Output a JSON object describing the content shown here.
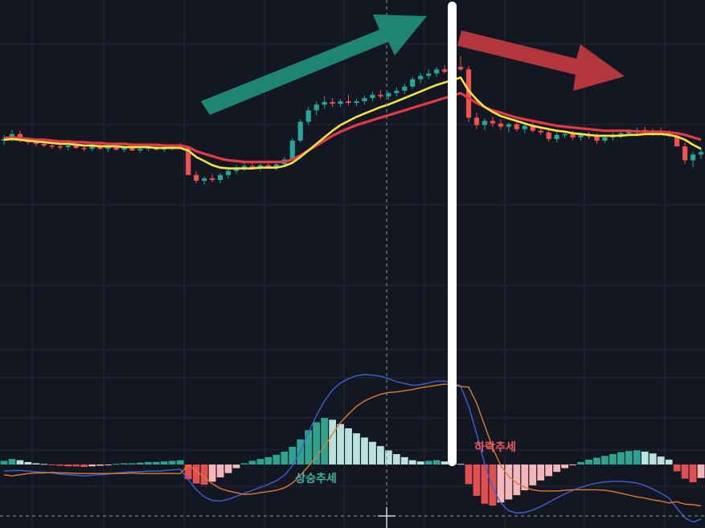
{
  "colors": {
    "background": "#131722",
    "grid": "#232a37",
    "candle_up": "#26a69a",
    "candle_down": "#ef5350",
    "ma_fast": "#f5e542",
    "ma_slow": "#e53945",
    "macd_line": "#3f5fd6",
    "signal_line": "#e07a2c",
    "hist_up_strong": "#2fa390",
    "hist_up_weak": "#b9e2dc",
    "hist_down_strong": "#e05050",
    "hist_down_weak": "#f2b6bb",
    "arrow_up": "#1f8f77",
    "arrow_down": "#c73a40",
    "divider": "#ffffff",
    "label_up": "#3fb39d",
    "label_down": "#f05a5a"
  },
  "annotations": {
    "uptrend_label": "상승추세",
    "downtrend_label": "하락추세"
  },
  "chart_data": [
    {
      "type": "candlestick",
      "title": "",
      "series": [
        {
          "name": "",
          "kind": "candles",
          "values": [
            [
              100.2,
              100.9,
              99.7,
              100.4
            ],
            [
              100.4,
              101.5,
              100.1,
              101.0
            ],
            [
              101.0,
              101.4,
              100.0,
              100.3
            ],
            [
              100.3,
              100.6,
              99.7,
              100.0
            ],
            [
              100.0,
              100.3,
              99.5,
              99.8
            ],
            [
              99.8,
              100.2,
              99.4,
              99.6
            ],
            [
              99.6,
              99.9,
              99.2,
              99.5
            ],
            [
              99.5,
              99.8,
              99.1,
              99.4
            ],
            [
              99.4,
              99.9,
              99.0,
              99.6
            ],
            [
              99.6,
              99.9,
              99.2,
              99.3
            ],
            [
              99.3,
              99.6,
              98.9,
              99.2
            ],
            [
              99.2,
              99.7,
              98.9,
              99.5
            ],
            [
              99.5,
              99.8,
              99.0,
              99.2
            ],
            [
              99.2,
              99.6,
              98.8,
              99.4
            ],
            [
              99.4,
              99.7,
              99.0,
              99.1
            ],
            [
              99.1,
              99.5,
              98.8,
              99.3
            ],
            [
              99.3,
              99.6,
              98.9,
              99.0
            ],
            [
              99.0,
              99.4,
              98.7,
              99.2
            ],
            [
              99.2,
              99.5,
              98.9,
              99.4
            ],
            [
              99.4,
              99.7,
              99.0,
              99.1
            ],
            [
              99.1,
              99.4,
              98.8,
              99.3
            ],
            [
              99.3,
              99.6,
              99.0,
              99.5
            ],
            [
              99.5,
              99.9,
              99.2,
              99.3
            ],
            [
              99.3,
              99.6,
              98.2,
              96.0
            ],
            [
              96.0,
              96.5,
              95.0,
              95.3
            ],
            [
              95.3,
              95.8,
              94.8,
              95.6
            ],
            [
              95.6,
              96.1,
              95.1,
              95.4
            ],
            [
              95.4,
              96.2,
              95.0,
              96.0
            ],
            [
              96.0,
              96.7,
              95.6,
              96.5
            ],
            [
              96.5,
              97.2,
              96.1,
              96.9
            ],
            [
              96.9,
              97.5,
              96.5,
              97.1
            ],
            [
              97.1,
              97.6,
              96.7,
              96.9
            ],
            [
              96.9,
              97.4,
              96.5,
              97.2
            ],
            [
              97.2,
              97.7,
              96.8,
              97.0
            ],
            [
              97.0,
              97.5,
              96.6,
              97.3
            ],
            [
              97.3,
              98.2,
              97.0,
              97.9
            ],
            [
              97.9,
              100.5,
              97.7,
              100.2
            ],
            [
              100.2,
              102.8,
              100.0,
              102.5
            ],
            [
              102.5,
              104.3,
              102.1,
              103.9
            ],
            [
              103.9,
              105.0,
              103.3,
              104.6
            ],
            [
              104.6,
              105.6,
              104.1,
              104.9
            ],
            [
              104.9,
              105.4,
              104.3,
              104.7
            ],
            [
              104.7,
              105.3,
              104.3,
              105.0
            ],
            [
              105.0,
              105.8,
              104.5,
              104.8
            ],
            [
              104.8,
              105.3,
              104.4,
              105.0
            ],
            [
              105.0,
              105.7,
              104.6,
              105.4
            ],
            [
              105.4,
              106.2,
              105.0,
              105.8
            ],
            [
              105.8,
              106.4,
              105.3,
              105.6
            ],
            [
              105.6,
              106.2,
              105.2,
              106.0
            ],
            [
              106.0,
              106.7,
              105.6,
              106.3
            ],
            [
              106.3,
              107.2,
              105.9,
              106.8
            ],
            [
              106.8,
              108.0,
              106.5,
              107.7
            ],
            [
              107.7,
              108.5,
              107.2,
              108.1
            ],
            [
              108.1,
              108.9,
              107.7,
              108.4
            ],
            [
              108.4,
              109.2,
              108.0,
              108.9
            ],
            [
              108.9,
              109.4,
              108.4,
              108.6
            ],
            [
              108.6,
              109.6,
              108.3,
              109.2
            ],
            [
              109.2,
              110.5,
              108.7,
              108.9
            ],
            [
              108.9,
              109.3,
              102.5,
              103.0
            ],
            [
              103.0,
              103.6,
              101.6,
              102.1
            ],
            [
              102.1,
              102.9,
              101.5,
              102.6
            ],
            [
              102.6,
              103.1,
              101.9,
              102.3
            ],
            [
              102.3,
              102.8,
              101.5,
              101.9
            ],
            [
              101.9,
              102.4,
              101.2,
              102.2
            ],
            [
              102.2,
              102.7,
              101.3,
              101.6
            ],
            [
              101.6,
              102.3,
              101.1,
              102.0
            ],
            [
              102.0,
              102.4,
              101.2,
              101.4
            ],
            [
              101.4,
              101.9,
              100.9,
              101.2
            ],
            [
              101.2,
              101.6,
              100.1,
              100.4
            ],
            [
              100.4,
              101.2,
              100.0,
              100.9
            ],
            [
              100.9,
              101.4,
              100.5,
              101.0
            ],
            [
              101.0,
              101.4,
              100.3,
              100.6
            ],
            [
              100.6,
              101.2,
              100.2,
              100.9
            ],
            [
              100.9,
              101.3,
              100.4,
              100.7
            ],
            [
              100.7,
              101.1,
              99.8,
              100.2
            ],
            [
              100.2,
              100.9,
              99.9,
              100.6
            ],
            [
              100.6,
              101.2,
              100.2,
              100.9
            ],
            [
              100.9,
              101.4,
              100.5,
              101.1
            ],
            [
              101.1,
              101.6,
              100.7,
              101.3
            ],
            [
              101.3,
              101.8,
              100.9,
              101.5
            ],
            [
              101.5,
              101.9,
              101.0,
              101.2
            ],
            [
              101.2,
              101.7,
              100.8,
              101.4
            ],
            [
              101.4,
              101.8,
              100.9,
              101.1
            ],
            [
              101.1,
              101.5,
              100.6,
              100.8
            ],
            [
              100.8,
              101.2,
              99.8,
              99.5
            ],
            [
              99.5,
              100.0,
              97.4,
              97.8
            ],
            [
              97.8,
              98.8,
              96.9,
              98.5
            ],
            [
              98.5,
              99.2,
              98.0,
              98.8
            ]
          ]
        },
        {
          "name": "",
          "kind": "line",
          "values": [
            100.3,
            100.4,
            100.3,
            100.2,
            100.1,
            100.0,
            99.9,
            99.8,
            99.8,
            99.7,
            99.6,
            99.6,
            99.5,
            99.5,
            99.5,
            99.4,
            99.4,
            99.4,
            99.4,
            99.3,
            99.3,
            99.3,
            99.3,
            99.0,
            98.2,
            97.7,
            97.2,
            96.9,
            96.8,
            96.8,
            96.8,
            96.8,
            96.9,
            96.9,
            96.9,
            97.1,
            97.5,
            98.2,
            99.0,
            99.8,
            100.6,
            101.4,
            102.1,
            102.6,
            103.1,
            103.5,
            103.9,
            104.3,
            104.6,
            105.0,
            105.4,
            105.8,
            106.2,
            106.6,
            107.0,
            107.3,
            107.6,
            107.9,
            106.3,
            105.2,
            104.3,
            103.7,
            103.2,
            102.9,
            102.6,
            102.3,
            102.0,
            101.8,
            101.6,
            101.4,
            101.3,
            101.1,
            101.0,
            100.9,
            100.8,
            100.8,
            100.8,
            100.8,
            100.9,
            100.9,
            101.0,
            101.0,
            101.0,
            100.9,
            100.7,
            100.3,
            99.7,
            99.2
          ]
        },
        {
          "name": "",
          "kind": "line",
          "values": [
            100.5,
            100.6,
            100.5,
            100.4,
            100.3,
            100.3,
            100.2,
            100.1,
            100.1,
            100.0,
            100.0,
            99.9,
            99.9,
            99.8,
            99.8,
            99.8,
            99.7,
            99.7,
            99.7,
            99.7,
            99.6,
            99.6,
            99.6,
            99.4,
            98.9,
            98.6,
            98.3,
            98.0,
            97.8,
            97.7,
            97.6,
            97.6,
            97.6,
            97.6,
            97.6,
            97.6,
            97.9,
            98.4,
            99.0,
            99.6,
            100.2,
            100.8,
            101.3,
            101.7,
            102.1,
            102.4,
            102.7,
            103.0,
            103.3,
            103.6,
            103.9,
            104.2,
            104.5,
            104.8,
            105.1,
            105.4,
            105.7,
            106.0,
            105.4,
            104.8,
            104.3,
            103.9,
            103.6,
            103.3,
            103.0,
            102.8,
            102.6,
            102.4,
            102.2,
            102.0,
            101.9,
            101.8,
            101.7,
            101.6,
            101.5,
            101.4,
            101.4,
            101.4,
            101.4,
            101.3,
            101.3,
            101.3,
            101.3,
            101.2,
            101.1,
            100.9,
            100.6,
            100.3
          ]
        }
      ]
    },
    {
      "type": "bar",
      "title": "",
      "xlabel": "",
      "ylabel": "",
      "series": [
        {
          "name": "",
          "kind": "histogram",
          "values": [
            0.6,
            0.9,
            0.7,
            0.4,
            0.2,
            0.1,
            -0.1,
            -0.2,
            -0.3,
            -0.3,
            -0.4,
            -0.3,
            -0.2,
            -0.1,
            0.1,
            0.2,
            0.2,
            0.3,
            0.4,
            0.4,
            0.5,
            0.6,
            0.7,
            -2.4,
            -3.1,
            -3.3,
            -2.8,
            -2.1,
            -1.4,
            -0.6,
            0.2,
            0.6,
            0.9,
            1.2,
            1.6,
            2.1,
            2.9,
            4.1,
            5.6,
            6.9,
            7.6,
            7.3,
            6.6,
            5.9,
            5.1,
            4.4,
            3.7,
            3.0,
            2.3,
            1.7,
            1.2,
            0.7,
            0.5,
            0.6,
            0.7,
            0.5,
            0.3,
            0.1,
            -3.2,
            -5.1,
            -6.4,
            -6.7,
            -6.2,
            -5.7,
            -5.0,
            -4.2,
            -3.4,
            -2.6,
            -1.9,
            -1.2,
            -0.6,
            -0.1,
            0.4,
            0.8,
            1.1,
            1.4,
            1.7,
            2.0,
            2.2,
            2.3,
            2.1,
            1.8,
            1.3,
            0.8,
            -1.1,
            -2.3,
            -2.9,
            -2.2
          ]
        },
        {
          "name": "",
          "kind": "line",
          "values": [
            -1.1,
            -1.0,
            -1.0,
            -1.1,
            -1.2,
            -1.3,
            -1.4,
            -1.6,
            -1.7,
            -1.8,
            -1.9,
            -1.8,
            -1.7,
            -1.6,
            -1.4,
            -1.3,
            -1.2,
            -1.2,
            -1.1,
            -1.1,
            -1.0,
            -0.9,
            -0.8,
            -2.5,
            -4.2,
            -5.4,
            -6.0,
            -6.1,
            -5.8,
            -5.3,
            -4.8,
            -4.3,
            -3.8,
            -3.3,
            -2.7,
            -1.8,
            -0.2,
            2.3,
            5.3,
            8.2,
            10.6,
            12.4,
            13.6,
            14.3,
            14.8,
            15.0,
            14.9,
            14.7,
            14.3,
            13.8,
            13.5,
            13.2,
            13.3,
            13.6,
            13.9,
            13.9,
            13.6,
            13.1,
            9.7,
            5.1,
            0.1,
            -3.9,
            -6.4,
            -7.7,
            -8.1,
            -8.0,
            -7.6,
            -7.0,
            -6.3,
            -5.6,
            -4.9,
            -4.3,
            -3.8,
            -3.4,
            -3.1,
            -2.9,
            -2.8,
            -2.8,
            -2.9,
            -3.1,
            -3.5,
            -4.1,
            -4.8,
            -5.6,
            -7.3,
            -8.9,
            -9.6,
            -9.1
          ]
        },
        {
          "name": "",
          "kind": "line",
          "values": [
            -1.7,
            -1.9,
            -1.7,
            -1.5,
            -1.4,
            -1.4,
            -1.3,
            -1.4,
            -1.4,
            -1.5,
            -1.5,
            -1.5,
            -1.5,
            -1.5,
            -1.5,
            -1.5,
            -1.4,
            -1.5,
            -1.5,
            -1.5,
            -1.5,
            -1.5,
            -1.5,
            -0.1,
            -1.1,
            -2.1,
            -3.2,
            -4.0,
            -4.4,
            -4.7,
            -5.0,
            -4.9,
            -4.7,
            -4.5,
            -4.3,
            -3.9,
            -3.1,
            -1.8,
            -0.3,
            1.3,
            3.0,
            5.1,
            7.0,
            8.4,
            9.7,
            10.6,
            11.2,
            11.7,
            12.0,
            12.1,
            12.3,
            12.5,
            12.8,
            13.0,
            13.2,
            13.4,
            13.3,
            13.0,
            12.9,
            10.2,
            6.5,
            2.8,
            -0.2,
            -2.0,
            -3.1,
            -3.8,
            -4.2,
            -4.4,
            -4.4,
            -4.4,
            -4.3,
            -4.2,
            -4.2,
            -4.2,
            -4.2,
            -4.3,
            -4.5,
            -4.8,
            -5.1,
            -5.4,
            -5.6,
            -5.9,
            -6.1,
            -6.4,
            -6.2,
            -6.6,
            -6.7,
            -6.9
          ]
        }
      ]
    }
  ]
}
